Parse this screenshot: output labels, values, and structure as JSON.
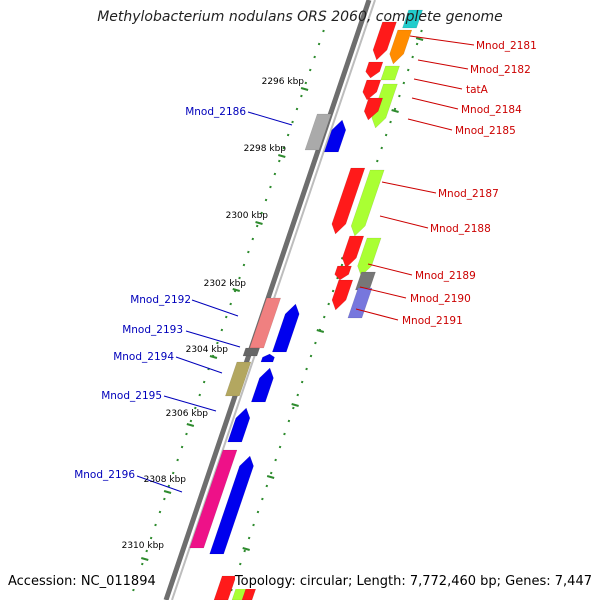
{
  "title": "Methylobacterium nodulans ORS 2060, complete genome",
  "footer": {
    "accession": "Accession: NC_011894",
    "topology": "Topology: circular; Length: 7,772,460 bp; Genes: 7,447"
  },
  "colors": {
    "backbone": "#888888",
    "tick": "#2e8b2e",
    "label_right": "#cc0000",
    "label_left": "#0000bb",
    "label_scale": "#000000"
  },
  "scale_labels": [
    "2296 kbp",
    "2298 kbp",
    "2300 kbp",
    "2302 kbp",
    "2304 kbp",
    "2306 kbp",
    "2308 kbp",
    "2310 kbp"
  ],
  "genes_right": [
    "Mnod_2181",
    "Mnod_2182",
    "tatA",
    "Mnod_2184",
    "Mnod_2185",
    "Mnod_2187",
    "Mnod_2188",
    "Mnod_2189",
    "Mnod_2190",
    "Mnod_2191"
  ],
  "genes_left": [
    "Mnod_2186",
    "Mnod_2192",
    "Mnod_2193",
    "Mnod_2194",
    "Mnod_2195",
    "Mnod_2196"
  ]
}
